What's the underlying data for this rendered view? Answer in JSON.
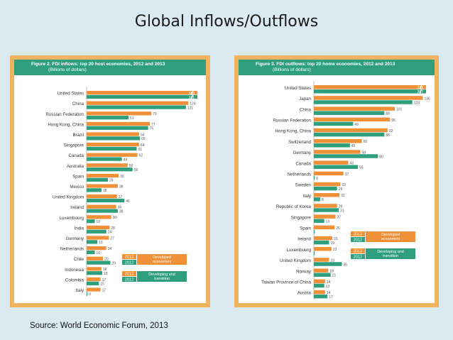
{
  "slide": {
    "title": "Global Inflows/Outflows",
    "source": "Source: World Economic Forum, 2013"
  },
  "colors": {
    "y2013": "#f0913a",
    "y2012": "#2f9e7d",
    "frame": "#f0b460",
    "header": "#2f9e7d"
  },
  "chart_data": [
    {
      "type": "bar",
      "orientation": "horizontal",
      "title": "Figure 2. FDI inflows: top 20 host economies, 2012 and 2013",
      "subtitle": "(Billions of dollars)",
      "axis_break_value": 135,
      "categories": [
        "United States",
        "China",
        "Russian Federation",
        "Hong Kong, China",
        "Brazil",
        "Singapore",
        "Canada",
        "Australia",
        "Spain",
        "Mexico",
        "United Kingdom",
        "Ireland",
        "Luxembourg",
        "India",
        "Germany",
        "Netherlands",
        "Chile",
        "Indonesia",
        "Colombia",
        "Italy"
      ],
      "series": [
        {
          "name": "2013",
          "values": [
            188,
            124,
            79,
            77,
            64,
            64,
            62,
            50,
            39,
            38,
            37,
            36,
            30,
            28,
            27,
            24,
            20,
            18,
            17,
            17
          ],
          "labels": [
            "188",
            "124",
            "79",
            "77",
            "64",
            "64",
            "62",
            "50",
            "39",
            "38",
            "37",
            "36",
            "30",
            "28",
            "27",
            "24",
            "20",
            "18",
            "17",
            "17"
          ]
        },
        {
          "name": "2012",
          "values": [
            161,
            121,
            51,
            75,
            65,
            61,
            43,
            56,
            26,
            18,
            46,
            38,
            10,
            24,
            13,
            10,
            29,
            19,
            15,
            0
          ],
          "labels": [
            "161",
            "121",
            "51",
            "75",
            "65",
            "61",
            "43",
            "56",
            "26",
            "18",
            "46",
            "38",
            "10",
            "24",
            "13",
            "10",
            "29",
            "19",
            "15",
            "0"
          ]
        }
      ],
      "legend": [
        {
          "year": "2013",
          "text": "Developed economies",
          "group": "developed"
        },
        {
          "year": "2012",
          "text": "Developed economies",
          "group": "developed"
        },
        {
          "year": "2013",
          "text": "Developing and transition economies",
          "group": "developing"
        },
        {
          "year": "2012",
          "text": "Developing and transition economies",
          "group": "developing"
        }
      ],
      "legend_position": "bottom-right"
    },
    {
      "type": "bar",
      "orientation": "horizontal",
      "title": "Figure 3. FDI outflows: top 20 home economies, 2012 and 2013",
      "subtitle": "(Billions of dollars)",
      "axis_break_value": 140,
      "categories": [
        "United States",
        "Japan",
        "China",
        "Russian Federation",
        "Hong Kong, China",
        "Switzerland",
        "Germany",
        "Canada",
        "Netherlands",
        "Sweden",
        "Italy",
        "Republic of Korea",
        "Singapore",
        "Spain",
        "Ireland",
        "Luxembourg",
        "United Kingdom",
        "Norway",
        "Taiwan Province of China",
        "Austria"
      ],
      "series": [
        {
          "name": "2013",
          "values": [
            338,
            136,
            101,
            95,
            92,
            60,
            58,
            43,
            37,
            33,
            32,
            29,
            27,
            26,
            23,
            22,
            19,
            18,
            14,
            14
          ],
          "labels": [
            "338",
            "136",
            "101",
            "95",
            "92",
            "60",
            "58",
            "43",
            "37",
            "33",
            "32",
            "29",
            "27",
            "26",
            "23",
            "22",
            "19",
            "18",
            "14",
            "14"
          ]
        },
        {
          "name": "2012",
          "values": [
            367,
            123,
            88,
            49,
            88,
            45,
            80,
            55,
            0,
            29,
            8,
            31,
            13,
            0,
            19,
            0,
            35,
            21,
            13,
            17
          ],
          "labels": [
            "367",
            "123",
            "88",
            "49",
            "88",
            "45",
            "80",
            "55",
            "0",
            "29",
            "8",
            "31",
            "13",
            "",
            "19",
            "",
            "35",
            "21",
            "13",
            "17"
          ]
        }
      ],
      "legend": [
        {
          "year": "2013",
          "text": "Developed economies",
          "group": "developed"
        },
        {
          "year": "2012",
          "text": "Developed economies",
          "group": "developed"
        },
        {
          "year": "2013",
          "text": "Developing and transition economies",
          "group": "developing"
        },
        {
          "year": "2012",
          "text": "Developing and transition economies",
          "group": "developing"
        }
      ],
      "legend_position": "bottom-right"
    }
  ]
}
